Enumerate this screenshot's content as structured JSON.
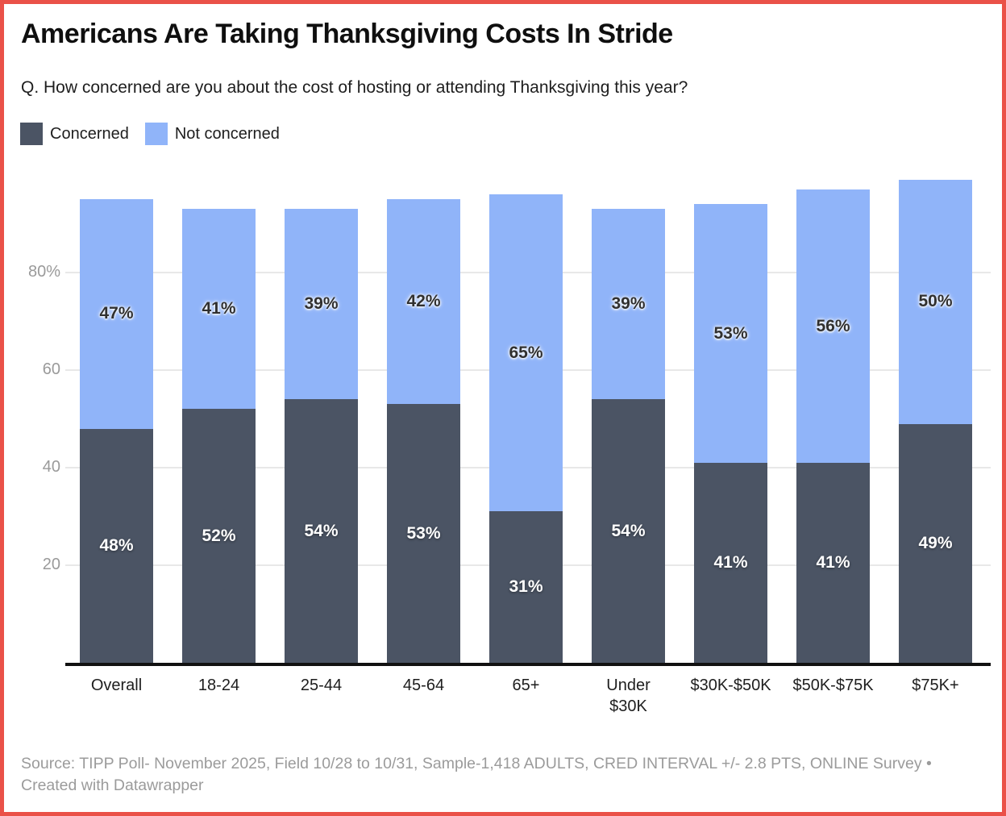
{
  "page": {
    "title": "Americans Are Taking Thanksgiving Costs In Stride",
    "subtitle": "Q. How concerned are you about the cost of hosting or attending Thanksgiving this year?",
    "source": "Source: TIPP Poll- November 2025, Field 10/28 to 10/31, Sample-1,418 ADULTS, CRED INTERVAL +/- 2.8 PTS, ONLINE Survey • Created with Datawrapper"
  },
  "colors": {
    "accent_border": "#EA5148",
    "concerned": "#4B5464",
    "not_concerned": "#90B4F9",
    "axis_line": "#111111",
    "gridline": "#E8E8E8",
    "tick_label": "#9A9A9A",
    "category_label": "#1E1E1E",
    "footer_text": "#9B9B9B"
  },
  "chart_data": {
    "type": "bar",
    "stacked": true,
    "title": "Americans Are Taking Thanksgiving Costs In Stride",
    "subtitle": "Q. How concerned are you about the cost of hosting or attending Thanksgiving this year?",
    "categories": [
      "Overall",
      "18-24",
      "25-44",
      "45-64",
      "65+",
      "Under $30K",
      "$30K-$50K",
      "$50K-$75K",
      "$75K+"
    ],
    "series": [
      {
        "name": "Concerned",
        "color": "#4B5464",
        "label_color": "#FFFFFF",
        "values": [
          48,
          52,
          54,
          53,
          31,
          54,
          41,
          41,
          49
        ]
      },
      {
        "name": "Not concerned",
        "color": "#90B4F9",
        "label_color": "#303030",
        "values": [
          47,
          41,
          39,
          42,
          65,
          39,
          53,
          56,
          50
        ]
      }
    ],
    "value_suffix": "%",
    "y_ticks": [
      20,
      40,
      60,
      80
    ],
    "y_tick_labels": [
      "20",
      "40",
      "60",
      "80%"
    ],
    "ylim": [
      0,
      100
    ],
    "grid": true,
    "legend_position": "top-left"
  }
}
